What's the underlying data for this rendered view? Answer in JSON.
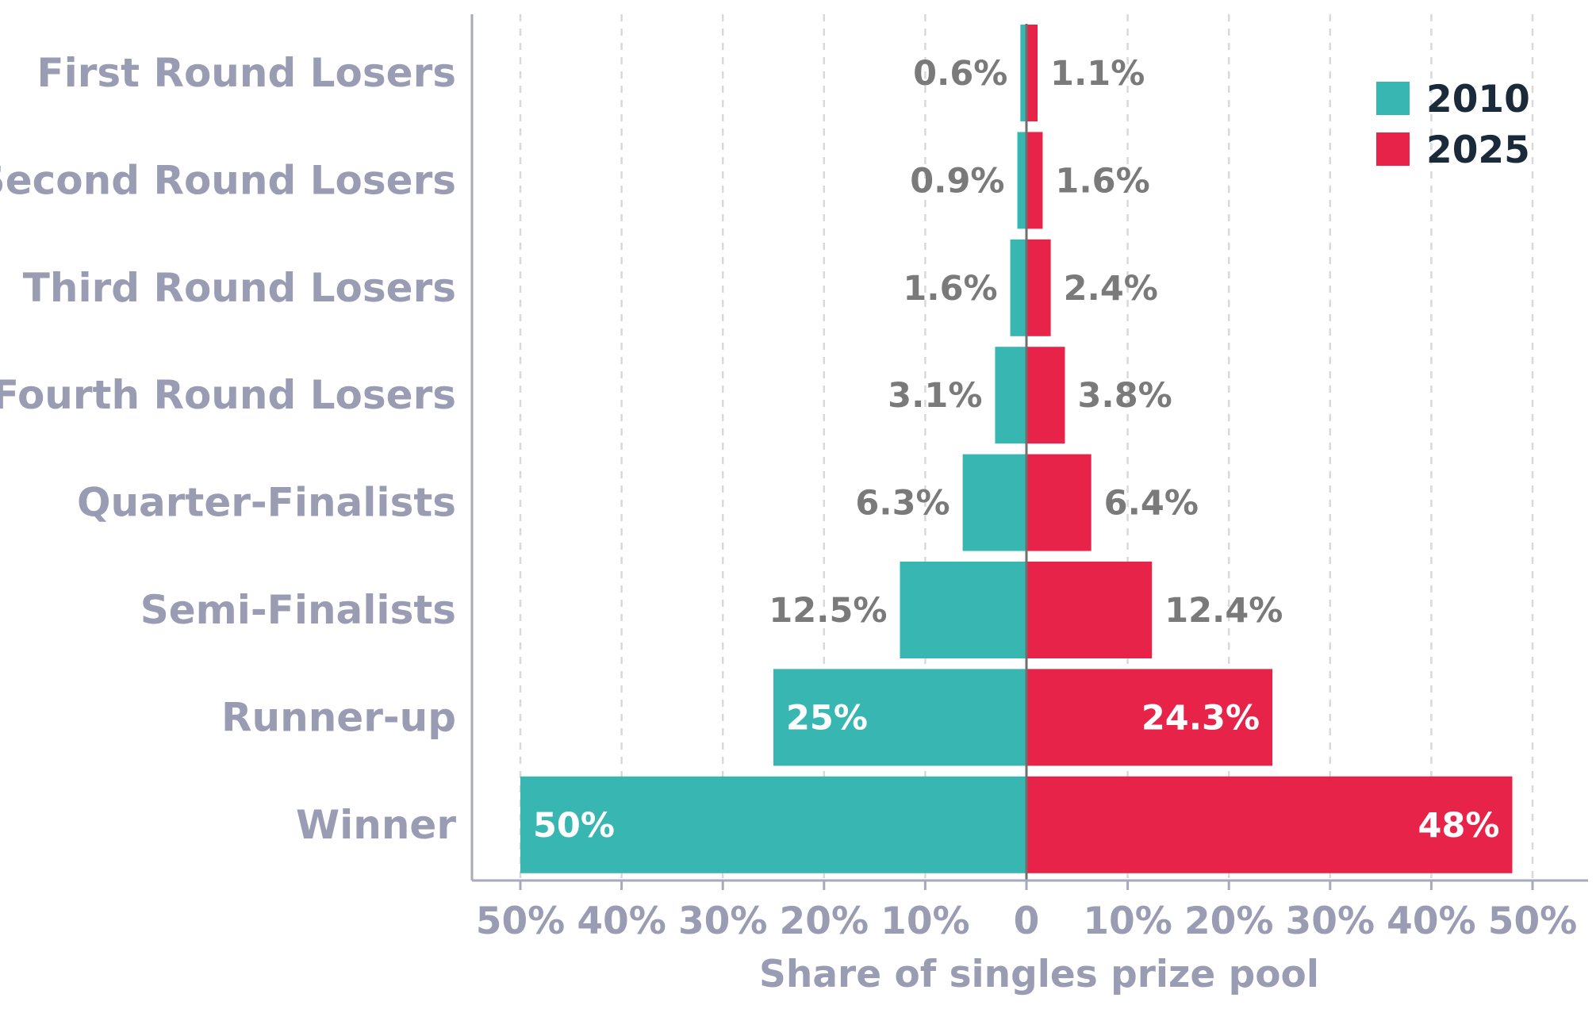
{
  "chart_data": {
    "type": "bar",
    "orientation": "horizontal-diverging",
    "categories": [
      "First Round Losers",
      "Second Round Losers",
      "Third Round Losers",
      "Fourth Round Losers",
      "Quarter-Finalists",
      "Semi-Finalists",
      "Runner-up",
      "Winner"
    ],
    "series": [
      {
        "name": "2010",
        "color": "#38b7b2",
        "direction": "left",
        "values": [
          0.6,
          0.9,
          1.6,
          3.1,
          6.3,
          12.5,
          25,
          50
        ],
        "labels": [
          "0.6%",
          "0.9%",
          "1.6%",
          "3.1%",
          "6.3%",
          "12.5%",
          "25%",
          "50%"
        ]
      },
      {
        "name": "2025",
        "color": "#e8234a",
        "direction": "right",
        "values": [
          1.1,
          1.6,
          2.4,
          3.8,
          6.4,
          12.4,
          24.3,
          48
        ],
        "labels": [
          "1.1%",
          "1.6%",
          "2.4%",
          "3.8%",
          "6.4%",
          "12.4%",
          "24.3%",
          "48%"
        ]
      }
    ],
    "xlim": [
      -50,
      50
    ],
    "xticks": [
      -50,
      -40,
      -30,
      -20,
      -10,
      0,
      10,
      20,
      30,
      40,
      50
    ],
    "xtick_labels": [
      "50%",
      "40%",
      "30%",
      "20%",
      "10%",
      "0",
      "10%",
      "20%",
      "30%",
      "40%",
      "50%"
    ],
    "xlabel": "Share of singles prize pool",
    "ylabel": "",
    "title": "",
    "grid": "vertical dashed",
    "legend": "top-right"
  }
}
